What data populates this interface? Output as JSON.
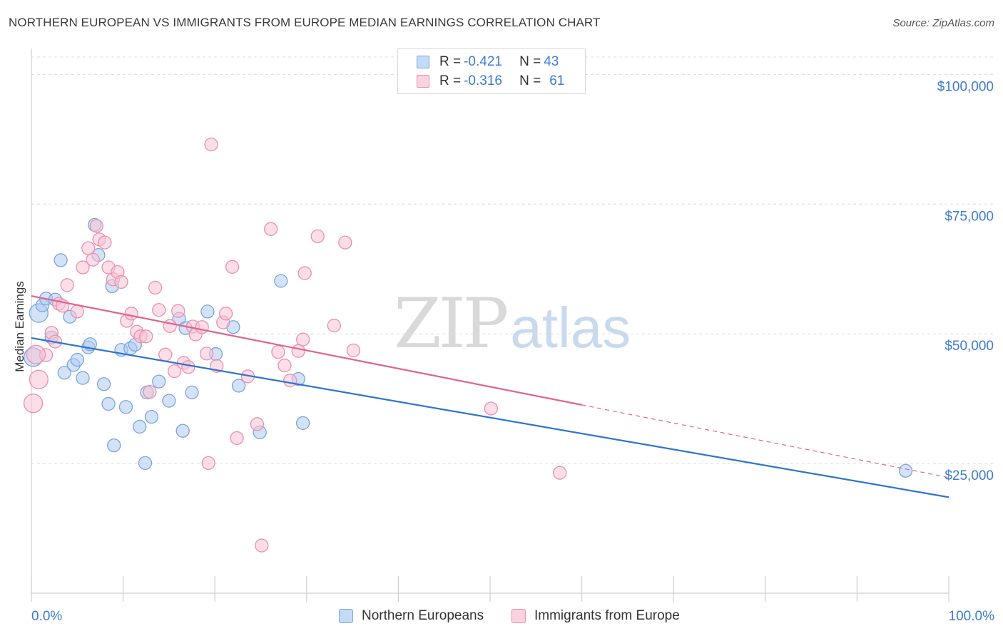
{
  "header": {
    "title": "NORTHERN EUROPEAN VS IMMIGRANTS FROM EUROPE MEDIAN EARNINGS CORRELATION CHART",
    "source": "Source: ZipAtlas.com"
  },
  "watermark": {
    "zip": "ZIP",
    "atlas": "atlas"
  },
  "legend": {
    "rows": [
      {
        "r_label": "R = ",
        "r_value": "-0.421",
        "n_label": "N = ",
        "n_value": "43",
        "color": "#aecbf0"
      },
      {
        "r_label": "R = ",
        "r_value": "-0.316",
        "n_label": "N = ",
        "n_value": "61",
        "color": "#f5b8cb"
      }
    ]
  },
  "bottom_legend": {
    "series1": "Northern Europeans",
    "series2": "Immigrants from Europe"
  },
  "colors": {
    "blue_fill": "#aecbf0",
    "blue_stroke": "#7aa6dc",
    "blue_line": "#2f74d0",
    "pink_fill": "#f7c3d3",
    "pink_stroke": "#ea90ae",
    "pink_line": "#e0638f",
    "tick_text": "#3d7bd2"
  },
  "chart_data": {
    "type": "scatter",
    "title": "NORTHERN EUROPEAN VS IMMIGRANTS FROM EUROPE MEDIAN EARNINGS CORRELATION CHART",
    "xlabel": "",
    "ylabel": "Median Earnings",
    "xlim": [
      0,
      100
    ],
    "ylim": [
      0,
      105000
    ],
    "x_tick_labels": [
      "0.0%",
      "100.0%"
    ],
    "y_ticks": [
      25000,
      50000,
      75000,
      100000
    ],
    "y_tick_labels": [
      "$25,000",
      "$50,000",
      "$75,000",
      "$100,000"
    ],
    "grid": true,
    "series": [
      {
        "name": "Northern Europeans",
        "R": -0.421,
        "N": 43,
        "trend": {
          "x": [
            0,
            100
          ],
          "y": [
            49200,
            18500
          ]
        },
        "points": [
          [
            0.2,
            45500
          ],
          [
            0.8,
            54000
          ],
          [
            1.2,
            55500
          ],
          [
            1.6,
            56800
          ],
          [
            2.2,
            49300
          ],
          [
            2.6,
            56600
          ],
          [
            3.2,
            64200
          ],
          [
            3.6,
            42500
          ],
          [
            4.2,
            53300
          ],
          [
            4.6,
            44000
          ],
          [
            5.0,
            45000
          ],
          [
            5.6,
            41500
          ],
          [
            6.2,
            47400
          ],
          [
            6.4,
            48000
          ],
          [
            6.9,
            71000
          ],
          [
            7.3,
            65200
          ],
          [
            7.9,
            40300
          ],
          [
            8.4,
            36500
          ],
          [
            8.8,
            59200
          ],
          [
            9.0,
            28500
          ],
          [
            9.8,
            46900
          ],
          [
            10.3,
            35900
          ],
          [
            10.8,
            47200
          ],
          [
            11.3,
            47900
          ],
          [
            11.8,
            32100
          ],
          [
            12.4,
            25100
          ],
          [
            12.6,
            38700
          ],
          [
            13.1,
            34000
          ],
          [
            13.9,
            40800
          ],
          [
            15.0,
            37100
          ],
          [
            16.1,
            52900
          ],
          [
            16.5,
            31300
          ],
          [
            16.8,
            51100
          ],
          [
            17.5,
            38700
          ],
          [
            19.2,
            54300
          ],
          [
            20.1,
            46100
          ],
          [
            22.0,
            51300
          ],
          [
            22.6,
            40000
          ],
          [
            24.9,
            31000
          ],
          [
            27.2,
            60200
          ],
          [
            29.1,
            41300
          ],
          [
            29.6,
            32800
          ],
          [
            95.3,
            23600
          ]
        ]
      },
      {
        "name": "Immigrants from Europe",
        "R": -0.316,
        "N": 61,
        "trend": {
          "x": [
            0,
            60
          ],
          "y": [
            57300,
            36300
          ]
        },
        "trend_dashed": {
          "x": [
            60,
            100
          ],
          "y": [
            36300,
            22300
          ]
        },
        "points": [
          [
            0.2,
            36600
          ],
          [
            0.8,
            41200
          ],
          [
            1.6,
            45900
          ],
          [
            2.2,
            50200
          ],
          [
            2.6,
            48500
          ],
          [
            3.0,
            55800
          ],
          [
            3.4,
            55400
          ],
          [
            3.9,
            59400
          ],
          [
            5.0,
            54300
          ],
          [
            5.6,
            62800
          ],
          [
            6.2,
            66500
          ],
          [
            6.7,
            64300
          ],
          [
            7.1,
            70800
          ],
          [
            7.4,
            68200
          ],
          [
            8.0,
            67600
          ],
          [
            8.4,
            62800
          ],
          [
            8.9,
            60500
          ],
          [
            9.4,
            61900
          ],
          [
            9.8,
            60000
          ],
          [
            10.4,
            52500
          ],
          [
            10.9,
            53900
          ],
          [
            11.5,
            50400
          ],
          [
            11.9,
            49500
          ],
          [
            12.5,
            49500
          ],
          [
            12.9,
            38800
          ],
          [
            13.5,
            58900
          ],
          [
            13.9,
            54600
          ],
          [
            14.6,
            46000
          ],
          [
            15.1,
            51500
          ],
          [
            15.6,
            42800
          ],
          [
            16.0,
            54400
          ],
          [
            16.6,
            44400
          ],
          [
            17.1,
            43600
          ],
          [
            17.6,
            51400
          ],
          [
            17.9,
            49900
          ],
          [
            18.6,
            51300
          ],
          [
            19.1,
            46200
          ],
          [
            19.3,
            25100
          ],
          [
            19.6,
            86500
          ],
          [
            20.2,
            43800
          ],
          [
            20.9,
            52200
          ],
          [
            21.2,
            53900
          ],
          [
            21.9,
            62900
          ],
          [
            22.4,
            29900
          ],
          [
            23.6,
            41800
          ],
          [
            24.6,
            32600
          ],
          [
            25.1,
            9200
          ],
          [
            26.1,
            70200
          ],
          [
            26.9,
            46500
          ],
          [
            27.6,
            43900
          ],
          [
            28.2,
            41000
          ],
          [
            29.1,
            46700
          ],
          [
            29.6,
            48900
          ],
          [
            29.8,
            61700
          ],
          [
            31.2,
            68800
          ],
          [
            33.0,
            51600
          ],
          [
            34.2,
            67600
          ],
          [
            35.1,
            46800
          ],
          [
            50.1,
            35600
          ],
          [
            57.6,
            23200
          ],
          [
            0.5,
            46000
          ]
        ]
      }
    ]
  }
}
